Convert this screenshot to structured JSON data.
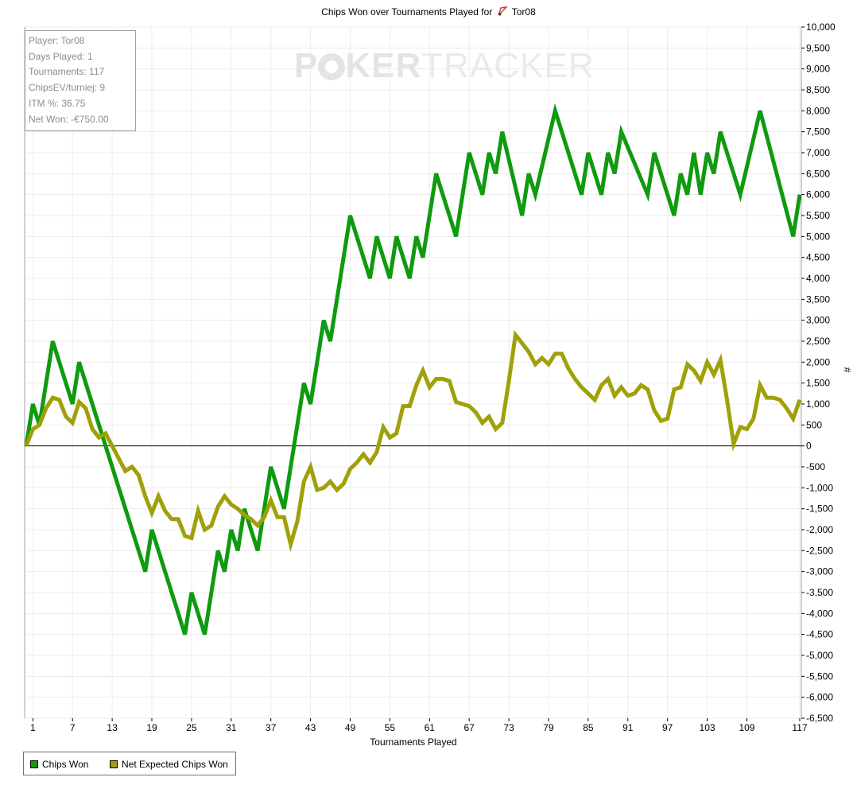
{
  "page": {
    "title_prefix": "Chips Won over Tournaments Played for",
    "title_player": "Tor08",
    "watermark_left": "P",
    "watermark_mid": "KER",
    "watermark_right": "TRACKER"
  },
  "stats": {
    "player": "Player: Tor08",
    "days_played": "Days Played: 1",
    "tournaments": "Tournaments: 117",
    "chipsev": "ChipsEV/turniej: 9",
    "itm": "ITM %: 36.75",
    "net_won": "Net Won: -€750.00"
  },
  "legend": {
    "chips_won": "Chips Won",
    "net_expected": "Net Expected Chips Won"
  },
  "colors": {
    "chips_won": "#0f9a0f",
    "net_expected": "#a0a00a",
    "grid": "#ececec",
    "zero_line": "#000000"
  },
  "chart_data": {
    "type": "line",
    "title": "Chips Won over Tournaments Played for Tor08",
    "xlabel": "Tournaments Played",
    "ylabel": "#",
    "xlim": [
      0,
      117
    ],
    "ylim": [
      -6500,
      10000
    ],
    "x_ticks": [
      1,
      7,
      13,
      19,
      25,
      31,
      37,
      43,
      49,
      55,
      61,
      67,
      73,
      79,
      85,
      91,
      97,
      103,
      109,
      117
    ],
    "y_tick_step": 500,
    "y_tick_labels": [
      "10,000",
      "9,500",
      "9,000",
      "8,500",
      "8,000",
      "7,500",
      "7,000",
      "6,500",
      "6,000",
      "5,500",
      "5,000",
      "4,500",
      "4,000",
      "3,500",
      "3,000",
      "2,500",
      "2,000",
      "1,500",
      "1,000",
      "500",
      "0",
      "-500",
      "-1,000",
      "-1,500",
      "-2,000",
      "-2,500",
      "-3,000",
      "-3,500",
      "-4,000",
      "-4,500",
      "-5,000",
      "-5,500",
      "-6,000",
      "-6,500"
    ],
    "legend_position": "bottom-left",
    "grid": true,
    "series": [
      {
        "name": "Chips Won",
        "points": [
          [
            0,
            0
          ],
          [
            1,
            1000
          ],
          [
            2,
            500
          ],
          [
            4,
            2500
          ],
          [
            7,
            1000
          ],
          [
            8,
            2000
          ],
          [
            18,
            -3000
          ],
          [
            19,
            -2000
          ],
          [
            24,
            -4500
          ],
          [
            25,
            -3500
          ],
          [
            27,
            -4500
          ],
          [
            29,
            -2500
          ],
          [
            30,
            -3000
          ],
          [
            31,
            -2000
          ],
          [
            32,
            -2500
          ],
          [
            33,
            -1500
          ],
          [
            35,
            -2500
          ],
          [
            37,
            -500
          ],
          [
            39,
            -1500
          ],
          [
            42,
            1500
          ],
          [
            43,
            1000
          ],
          [
            45,
            3000
          ],
          [
            46,
            2500
          ],
          [
            49,
            5500
          ],
          [
            52,
            4000
          ],
          [
            53,
            5000
          ],
          [
            55,
            4000
          ],
          [
            56,
            5000
          ],
          [
            58,
            4000
          ],
          [
            59,
            5000
          ],
          [
            60,
            4500
          ],
          [
            62,
            6500
          ],
          [
            65,
            5000
          ],
          [
            67,
            7000
          ],
          [
            69,
            6000
          ],
          [
            70,
            7000
          ],
          [
            71,
            6500
          ],
          [
            72,
            7500
          ],
          [
            75,
            5500
          ],
          [
            76,
            6500
          ],
          [
            77,
            6000
          ],
          [
            80,
            8000
          ],
          [
            84,
            6000
          ],
          [
            85,
            7000
          ],
          [
            87,
            6000
          ],
          [
            88,
            7000
          ],
          [
            89,
            6500
          ],
          [
            90,
            7500
          ],
          [
            94,
            6000
          ],
          [
            95,
            7000
          ],
          [
            98,
            5500
          ],
          [
            99,
            6500
          ],
          [
            100,
            6000
          ],
          [
            101,
            7000
          ],
          [
            102,
            6000
          ],
          [
            103,
            7000
          ],
          [
            104,
            6500
          ],
          [
            105,
            7500
          ],
          [
            108,
            6000
          ],
          [
            111,
            8000
          ],
          [
            116,
            5000
          ],
          [
            117,
            6000
          ]
        ]
      },
      {
        "name": "Net Expected Chips Won",
        "points": [
          [
            0,
            0
          ],
          [
            1,
            400
          ],
          [
            2,
            500
          ],
          [
            3,
            900
          ],
          [
            4,
            1150
          ],
          [
            5,
            1100
          ],
          [
            6,
            700
          ],
          [
            7,
            550
          ],
          [
            8,
            1050
          ],
          [
            9,
            900
          ],
          [
            10,
            400
          ],
          [
            11,
            200
          ],
          [
            12,
            300
          ],
          [
            13,
            0
          ],
          [
            14,
            -300
          ],
          [
            15,
            -600
          ],
          [
            16,
            -500
          ],
          [
            17,
            -700
          ],
          [
            18,
            -1200
          ],
          [
            19,
            -1600
          ],
          [
            20,
            -1200
          ],
          [
            21,
            -1550
          ],
          [
            22,
            -1750
          ],
          [
            23,
            -1750
          ],
          [
            24,
            -2150
          ],
          [
            25,
            -2200
          ],
          [
            26,
            -1550
          ],
          [
            27,
            -2000
          ],
          [
            28,
            -1900
          ],
          [
            29,
            -1450
          ],
          [
            30,
            -1200
          ],
          [
            31,
            -1400
          ],
          [
            32,
            -1500
          ],
          [
            33,
            -1650
          ],
          [
            34,
            -1750
          ],
          [
            35,
            -1900
          ],
          [
            36,
            -1700
          ],
          [
            37,
            -1300
          ],
          [
            38,
            -1700
          ],
          [
            39,
            -1700
          ],
          [
            40,
            -2350
          ],
          [
            41,
            -1800
          ],
          [
            42,
            -850
          ],
          [
            43,
            -500
          ],
          [
            44,
            -1050
          ],
          [
            45,
            -1000
          ],
          [
            46,
            -850
          ],
          [
            47,
            -1050
          ],
          [
            48,
            -900
          ],
          [
            49,
            -550
          ],
          [
            50,
            -400
          ],
          [
            51,
            -200
          ],
          [
            52,
            -400
          ],
          [
            53,
            -150
          ],
          [
            54,
            450
          ],
          [
            55,
            200
          ],
          [
            56,
            300
          ],
          [
            57,
            950
          ],
          [
            58,
            950
          ],
          [
            59,
            1450
          ],
          [
            60,
            1800
          ],
          [
            61,
            1400
          ],
          [
            62,
            1600
          ],
          [
            63,
            1600
          ],
          [
            64,
            1550
          ],
          [
            65,
            1050
          ],
          [
            66,
            1000
          ],
          [
            67,
            950
          ],
          [
            68,
            800
          ],
          [
            69,
            550
          ],
          [
            70,
            700
          ],
          [
            71,
            400
          ],
          [
            72,
            550
          ],
          [
            73,
            1550
          ],
          [
            74,
            2650
          ],
          [
            75,
            2450
          ],
          [
            76,
            2250
          ],
          [
            77,
            1950
          ],
          [
            78,
            2100
          ],
          [
            79,
            1950
          ],
          [
            80,
            2200
          ],
          [
            81,
            2200
          ],
          [
            82,
            1850
          ],
          [
            83,
            1600
          ],
          [
            84,
            1400
          ],
          [
            85,
            1250
          ],
          [
            86,
            1100
          ],
          [
            87,
            1450
          ],
          [
            88,
            1600
          ],
          [
            89,
            1200
          ],
          [
            90,
            1400
          ],
          [
            91,
            1200
          ],
          [
            92,
            1250
          ],
          [
            93,
            1450
          ],
          [
            94,
            1350
          ],
          [
            95,
            850
          ],
          [
            96,
            600
          ],
          [
            97,
            650
          ],
          [
            98,
            1350
          ],
          [
            99,
            1400
          ],
          [
            100,
            1950
          ],
          [
            101,
            1800
          ],
          [
            102,
            1550
          ],
          [
            103,
            2000
          ],
          [
            104,
            1700
          ],
          [
            105,
            2050
          ],
          [
            106,
            1100
          ],
          [
            107,
            50
          ],
          [
            108,
            450
          ],
          [
            109,
            400
          ],
          [
            110,
            650
          ],
          [
            111,
            1450
          ],
          [
            112,
            1150
          ],
          [
            113,
            1150
          ],
          [
            114,
            1100
          ],
          [
            115,
            900
          ],
          [
            116,
            650
          ],
          [
            117,
            1100
          ]
        ]
      }
    ]
  }
}
